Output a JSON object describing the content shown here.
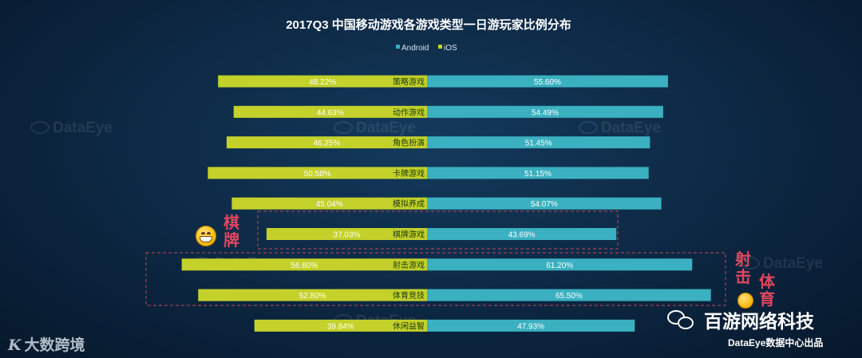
{
  "chart_data": {
    "type": "bar",
    "title": "2017Q3 中国移动游戏各游戏类型一日游玩家比例分布",
    "categories": [
      "策略游戏",
      "动作游戏",
      "角色扮演",
      "卡牌游戏",
      "模拟养成",
      "棋牌游戏",
      "射击游戏",
      "体育竞技",
      "休闲益智"
    ],
    "series": [
      {
        "name": "Android",
        "color": "#3ab0c0",
        "values": [
          55.6,
          54.49,
          51.45,
          51.15,
          54.07,
          43.69,
          61.2,
          65.5,
          47.93
        ],
        "labels": [
          "55.60%",
          "54.49%",
          "51.45%",
          "51.15%",
          "54.07%",
          "43.69%",
          "61.20%",
          "65.50%",
          "47.93%"
        ]
      },
      {
        "name": "iOS",
        "color": "#c3d12a",
        "values": [
          48.22,
          44.63,
          46.25,
          50.58,
          45.04,
          37.03,
          56.6,
          52.8,
          39.84
        ],
        "labels": [
          "48.22%",
          "44.63%",
          "46.25%",
          "50.58%",
          "45.04%",
          "37.03%",
          "56.60%",
          "52.80%",
          "39.84%"
        ]
      }
    ],
    "legend": [
      "Android",
      "iOS"
    ],
    "legend_position": "top-center",
    "highlighted": [
      "棋牌游戏",
      "射击游戏",
      "体育竞技"
    ]
  },
  "annotations": {
    "qipai": "棋牌",
    "sheji": "射击",
    "tiyu": "体育"
  },
  "watermark": "DataEye",
  "branding": {
    "left_logo": "K",
    "left_text": "大数跨境",
    "wechat_name": "百游网络科技",
    "footer": "DataEye数据中心出品"
  },
  "colors": {
    "android": "#3ab0c0",
    "ios": "#c3d12a",
    "accent": "#e0475f"
  }
}
